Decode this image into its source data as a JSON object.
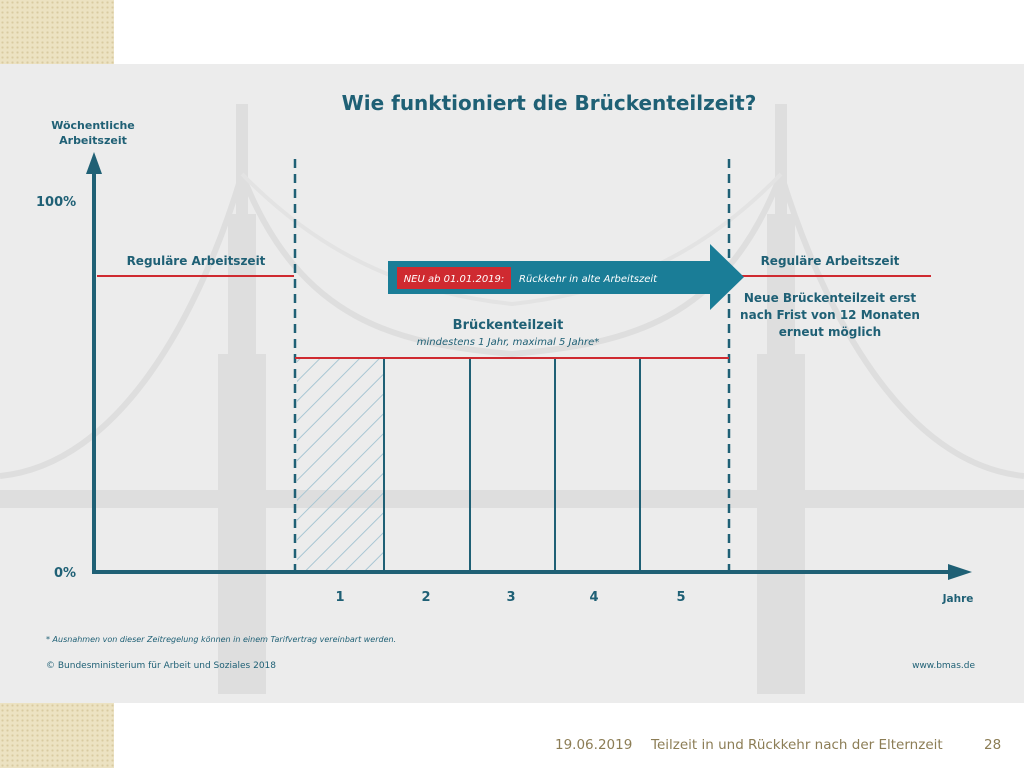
{
  "diagram": {
    "title": "Wie funktioniert die Brückenteilzeit?",
    "y_axis_label_line1": "Wöchentliche",
    "y_axis_label_line2": "Arbeitszeit",
    "y_tick_top": "100%",
    "y_tick_bottom": "0%",
    "x_axis_label": "Jahre",
    "x_ticks": [
      "1",
      "2",
      "3",
      "4",
      "5"
    ],
    "regular_left": "Reguläre Arbeitszeit",
    "regular_right": "Reguläre Arbeitszeit",
    "arrow_badge": "NEU ab 01.01.2019:",
    "arrow_text": "Rückkehr in alte Arbeitszeit",
    "bridge_title": "Brückenteilzeit",
    "bridge_subtitle": "mindestens 1 Jahr, maximal 5 Jahre*",
    "right_note_line1": "Neue Brückenteilzeit erst",
    "right_note_line2": "nach Frist von 12 Monaten",
    "right_note_line3": "erneut möglich",
    "footnote": "* Ausnahmen von dieser Zeitregelung können in einem Tarifvertrag vereinbart werden.",
    "copyright": "© Bundesministerium für Arbeit und Soziales 2018",
    "website": "www.bmas.de"
  },
  "footer": {
    "date": "19.06.2019",
    "title": "Teilzeit in und Rückkehr nach der Elternzeit",
    "page": "28"
  },
  "colors": {
    "axis": "#1f6075",
    "red": "#cf2a30",
    "arrow": "#1a7d97",
    "bridge_bg": "#dedede",
    "panel": "#ececec"
  }
}
